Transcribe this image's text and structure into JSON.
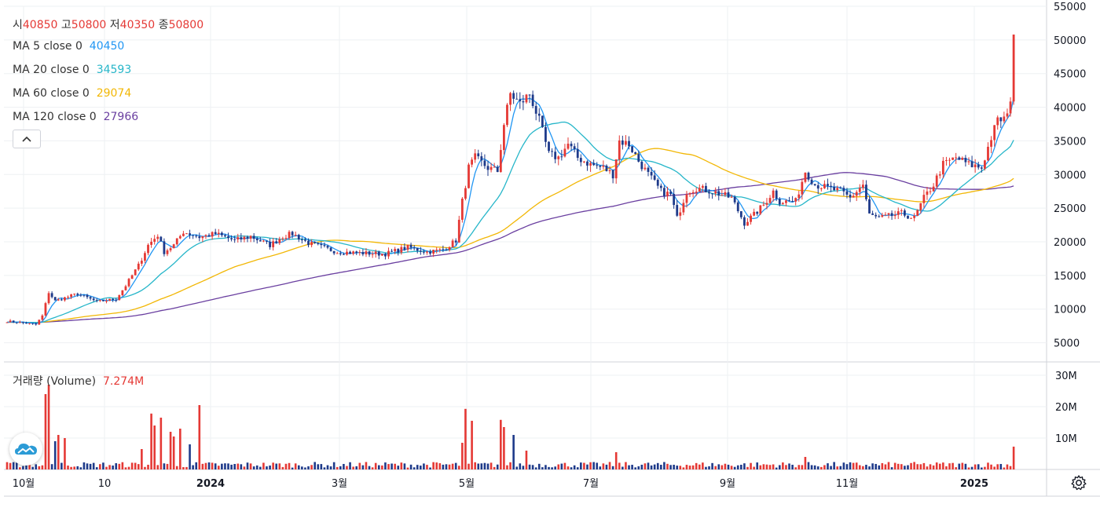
{
  "legend": {
    "ohlc": {
      "open_label": "시",
      "open": "40850",
      "high_label": "고",
      "high": "50800",
      "low_label": "저",
      "low": "40350",
      "close_label": "종",
      "close": "50800"
    },
    "ma": [
      {
        "label": "MA 5 close 0",
        "value": "40450",
        "color": "#2196f3"
      },
      {
        "label": "MA 20 close 0",
        "value": "34593",
        "color": "#26b6c9"
      },
      {
        "label": "MA 60 close 0",
        "value": "29074",
        "color": "#f2b705"
      },
      {
        "label": "MA 120 close 0",
        "value": "27966",
        "color": "#6a3fa0"
      }
    ],
    "volume": {
      "label": "거래량 (Volume)",
      "value": "7.274M"
    }
  },
  "colors": {
    "up": "#e53935",
    "down": "#1e3a8a",
    "grid": "#eef0f3"
  },
  "icons": {
    "collapse": "chevron-up-icon",
    "logo": "cloud-logo-icon",
    "settings": "gear-icon"
  },
  "chart_data": {
    "type": "candlestick",
    "price_axis": {
      "ticks": [
        55000,
        50000,
        45000,
        40000,
        35000,
        30000,
        25000,
        20000,
        15000,
        10000,
        5000
      ],
      "labels": [
        "55000",
        "50000",
        "45000",
        "40000",
        "35000",
        "30000",
        "25000",
        "20000",
        "15000",
        "10000",
        "5000"
      ],
      "range": [
        2500,
        55000
      ]
    },
    "volume_axis": {
      "ticks": [
        30000000,
        20000000,
        10000000
      ],
      "labels": [
        "30M",
        "20M",
        "10M"
      ],
      "range": [
        0,
        32000000
      ]
    },
    "x_axis": {
      "labels": [
        "10월",
        "10",
        "2024",
        "3월",
        "5월",
        "7월",
        "9월",
        "11월",
        "2025"
      ]
    },
    "anchors": [
      {
        "t": 0,
        "p": 8200
      },
      {
        "t": 6,
        "p": 7900
      },
      {
        "t": 9,
        "p": 7700
      },
      {
        "t": 11,
        "p": 9000
      },
      {
        "t": 13,
        "p": 12500
      },
      {
        "t": 15,
        "p": 11200
      },
      {
        "t": 22,
        "p": 12300
      },
      {
        "t": 28,
        "p": 11100
      },
      {
        "t": 34,
        "p": 11500
      },
      {
        "t": 37,
        "p": 13500
      },
      {
        "t": 41,
        "p": 16500
      },
      {
        "t": 44,
        "p": 19500
      },
      {
        "t": 47,
        "p": 21000
      },
      {
        "t": 49,
        "p": 18500
      },
      {
        "t": 52,
        "p": 19500
      },
      {
        "t": 55,
        "p": 21500
      },
      {
        "t": 60,
        "p": 20700
      },
      {
        "t": 65,
        "p": 21200
      },
      {
        "t": 71,
        "p": 20200
      },
      {
        "t": 76,
        "p": 20800
      },
      {
        "t": 82,
        "p": 19500
      },
      {
        "t": 86,
        "p": 20800
      },
      {
        "t": 89,
        "p": 21200
      },
      {
        "t": 94,
        "p": 19800
      },
      {
        "t": 103,
        "p": 18500
      },
      {
        "t": 112,
        "p": 18300
      },
      {
        "t": 118,
        "p": 18200
      },
      {
        "t": 125,
        "p": 19200
      },
      {
        "t": 131,
        "p": 18500
      },
      {
        "t": 136,
        "p": 18800
      },
      {
        "t": 140,
        "p": 20200
      },
      {
        "t": 142,
        "p": 26000
      },
      {
        "t": 144,
        "p": 31000
      },
      {
        "t": 146,
        "p": 32500
      },
      {
        "t": 150,
        "p": 31000
      },
      {
        "t": 153,
        "p": 30500
      },
      {
        "t": 155,
        "p": 37500
      },
      {
        "t": 157,
        "p": 42000
      },
      {
        "t": 160,
        "p": 40500
      },
      {
        "t": 163,
        "p": 42000
      },
      {
        "t": 166,
        "p": 38000
      },
      {
        "t": 169,
        "p": 33000
      },
      {
        "t": 172,
        "p": 32500
      },
      {
        "t": 175,
        "p": 34500
      },
      {
        "t": 178,
        "p": 32500
      },
      {
        "t": 182,
        "p": 31500
      },
      {
        "t": 186,
        "p": 31000
      },
      {
        "t": 189,
        "p": 30000
      },
      {
        "t": 191,
        "p": 35000
      },
      {
        "t": 194,
        "p": 34500
      },
      {
        "t": 197,
        "p": 32000
      },
      {
        "t": 200,
        "p": 30000
      },
      {
        "t": 204,
        "p": 27500
      },
      {
        "t": 207,
        "p": 27000
      },
      {
        "t": 209,
        "p": 23500
      },
      {
        "t": 212,
        "p": 27500
      },
      {
        "t": 215,
        "p": 28000
      },
      {
        "t": 220,
        "p": 27500
      },
      {
        "t": 226,
        "p": 26500
      },
      {
        "t": 230,
        "p": 22800
      },
      {
        "t": 233,
        "p": 24000
      },
      {
        "t": 236,
        "p": 25500
      },
      {
        "t": 239,
        "p": 27500
      },
      {
        "t": 241,
        "p": 26000
      },
      {
        "t": 246,
        "p": 26000
      },
      {
        "t": 249,
        "p": 30500
      },
      {
        "t": 252,
        "p": 28500
      },
      {
        "t": 256,
        "p": 28000
      },
      {
        "t": 260,
        "p": 27500
      },
      {
        "t": 263,
        "p": 26500
      },
      {
        "t": 267,
        "p": 28500
      },
      {
        "t": 269,
        "p": 24000
      },
      {
        "t": 272,
        "p": 23500
      },
      {
        "t": 275,
        "p": 23800
      },
      {
        "t": 279,
        "p": 24200
      },
      {
        "t": 283,
        "p": 23500
      },
      {
        "t": 286,
        "p": 26500
      },
      {
        "t": 289,
        "p": 28500
      },
      {
        "t": 292,
        "p": 31500
      },
      {
        "t": 296,
        "p": 32500
      },
      {
        "t": 300,
        "p": 31500
      },
      {
        "t": 304,
        "p": 31000
      },
      {
        "t": 307,
        "p": 35500
      },
      {
        "t": 309,
        "p": 38000
      },
      {
        "t": 312,
        "p": 38500
      },
      {
        "t": 313,
        "p": 40850
      }
    ],
    "last_candle": {
      "open": 40850,
      "high": 50800,
      "low": 40350,
      "close": 50800,
      "volume": 7274000
    },
    "volume_spikes": [
      {
        "t": 12,
        "v": 24000000
      },
      {
        "t": 13,
        "v": 27000000
      },
      {
        "t": 15,
        "v": 9000000
      },
      {
        "t": 16,
        "v": 11000000
      },
      {
        "t": 18,
        "v": 10000000
      },
      {
        "t": 42,
        "v": 6500000
      },
      {
        "t": 45,
        "v": 17800000
      },
      {
        "t": 46,
        "v": 14000000
      },
      {
        "t": 48,
        "v": 16500000
      },
      {
        "t": 51,
        "v": 12000000
      },
      {
        "t": 52,
        "v": 10500000
      },
      {
        "t": 54,
        "v": 13000000
      },
      {
        "t": 57,
        "v": 8000000
      },
      {
        "t": 60,
        "v": 20500000
      },
      {
        "t": 142,
        "v": 8500000
      },
      {
        "t": 143,
        "v": 19300000
      },
      {
        "t": 145,
        "v": 15500000
      },
      {
        "t": 154,
        "v": 15800000
      },
      {
        "t": 155,
        "v": 13500000
      },
      {
        "t": 158,
        "v": 11000000
      },
      {
        "t": 162,
        "v": 6000000
      },
      {
        "t": 190,
        "v": 5500000
      },
      {
        "t": 249,
        "v": 4000000
      },
      {
        "t": 314,
        "v": 7274000
      }
    ],
    "moving_averages": [
      {
        "name": "MA 5 close 0",
        "period": 5,
        "color": "#2196f3",
        "last": 40450
      },
      {
        "name": "MA 20 close 0",
        "period": 20,
        "color": "#26b6c9",
        "last": 34593
      },
      {
        "name": "MA 60 close 0",
        "period": 60,
        "color": "#f2b705",
        "last": 29074
      },
      {
        "name": "MA 120 close 0",
        "period": 120,
        "color": "#6a3fa0",
        "last": 27966
      }
    ],
    "grid": true
  }
}
